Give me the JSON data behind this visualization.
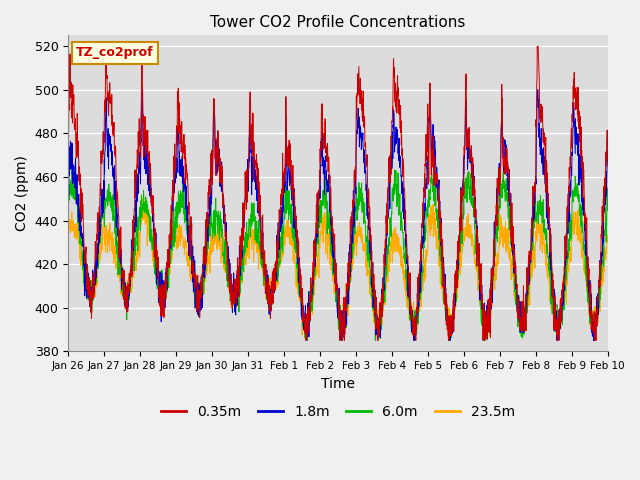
{
  "title": "Tower CO2 Profile Concentrations",
  "xlabel": "Time",
  "ylabel": "CO2 (ppm)",
  "ylim": [
    380,
    525
  ],
  "yticks": [
    380,
    400,
    420,
    440,
    460,
    480,
    500,
    520
  ],
  "label_box_text": "TZ_co2prof",
  "legend_entries": [
    "0.35m",
    "1.8m",
    "6.0m",
    "23.5m"
  ],
  "legend_colors": [
    "#cc0000",
    "#0000cc",
    "#00bb00",
    "#ffaa00"
  ],
  "line_colors": [
    "#cc0000",
    "#0000cc",
    "#00bb00",
    "#ffaa00"
  ],
  "xtick_labels": [
    "Jan 26",
    "Jan 27",
    "Jan 28",
    "Jan 29",
    "Jan 30",
    "Jan 31",
    "Feb 1",
    "Feb 2",
    "Feb 3",
    "Feb 4",
    "Feb 5",
    "Feb 6",
    "Feb 7",
    "Feb 8",
    "Feb 9",
    "Feb 10"
  ],
  "bg_color": "#dcdcdc",
  "fig_color": "#f0f0f0"
}
